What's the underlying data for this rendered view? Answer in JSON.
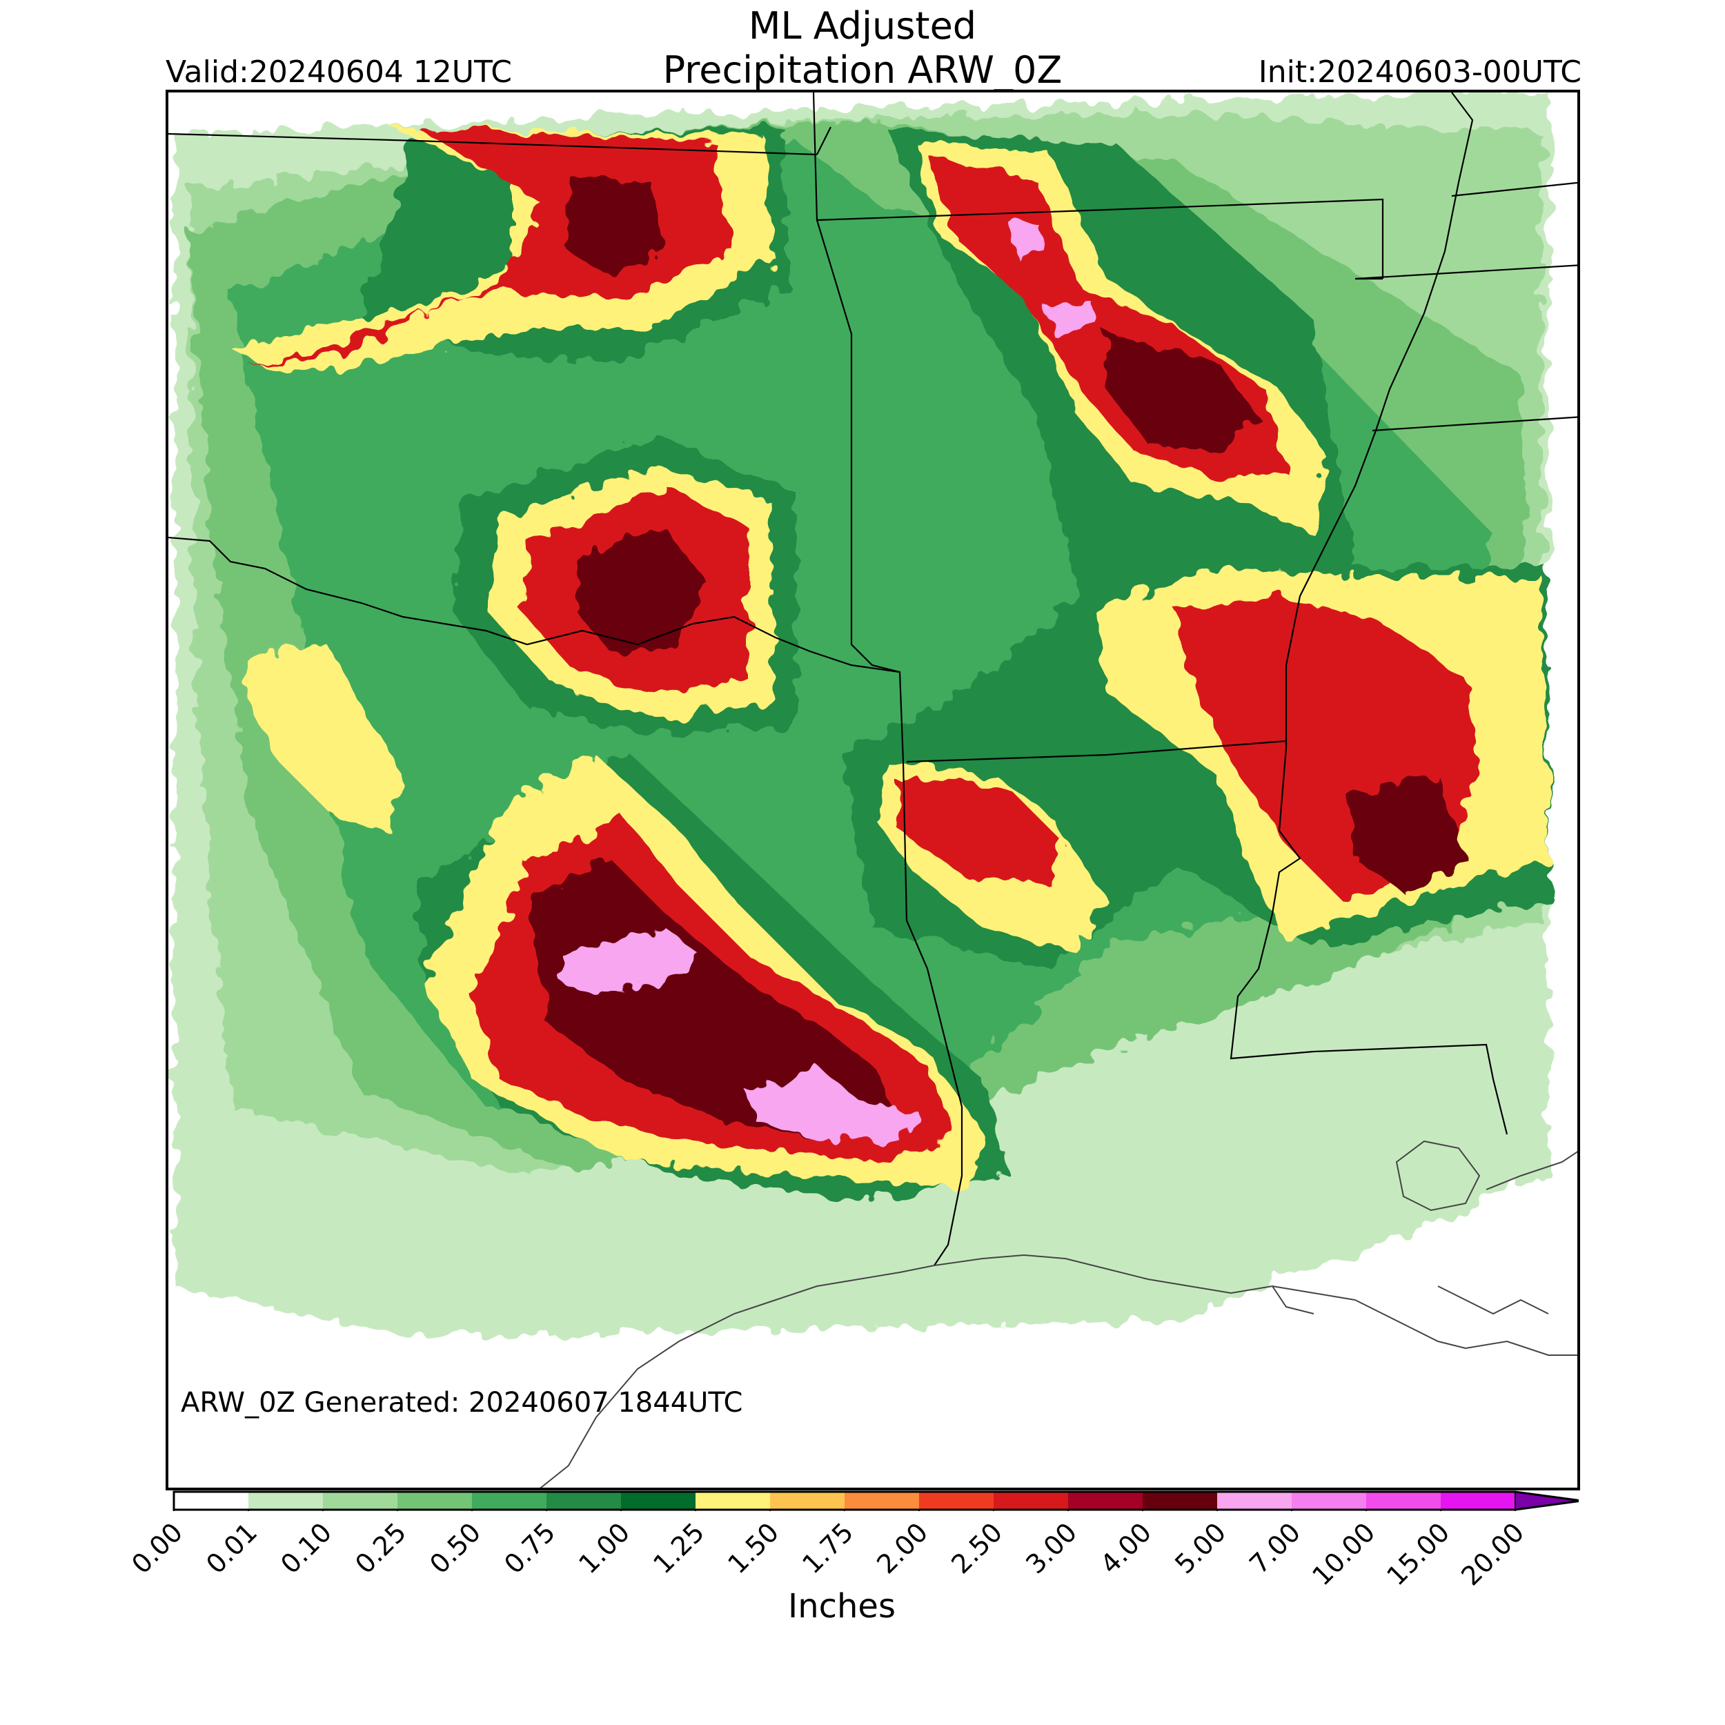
{
  "header": {
    "title_line1": "ML Adjusted",
    "title_line2": "Precipitation ARW_0Z",
    "valid": "Valid:20240604 12UTC",
    "init": "Init:20240603-00UTC"
  },
  "footer_note": "ARW_0Z Generated: 20240607 1844UTC",
  "colorbar": {
    "label": "Inches",
    "ticks": [
      "0.00",
      "0.01",
      "0.10",
      "0.25",
      "0.50",
      "0.75",
      "1.00",
      "1.25",
      "1.50",
      "1.75",
      "2.00",
      "2.50",
      "3.00",
      "4.00",
      "5.00",
      "7.00",
      "10.00",
      "15.00",
      "20.00"
    ],
    "colors": [
      "#ffffff",
      "#c7e9c0",
      "#a1d99b",
      "#74c476",
      "#41ab5d",
      "#238b45",
      "#006d2c",
      "#fff27a",
      "#fec44f",
      "#fd8d3c",
      "#f03b20",
      "#d7191c",
      "#a50026",
      "#67000d",
      "#f7a6ef",
      "#f57fee",
      "#f24ced",
      "#e514f0",
      "#a40ccf",
      "#7a00a8"
    ],
    "extend": "max"
  },
  "map": {
    "colors": {
      "light_green": "#c7e9c0",
      "pale_green": "#a1d99b",
      "mid_green": "#74c476",
      "green": "#41ab5d",
      "dark_green": "#238b45",
      "darkest_green": "#006d2c",
      "yellow": "#fff27a",
      "gold": "#fec44f",
      "orange": "#fd8d3c",
      "red_orange": "#f03b20",
      "red": "#d7191c",
      "crimson": "#a50026",
      "maroon": "#67000d",
      "pink": "#f7a6ef",
      "boundary": "#000000",
      "coast": "#444444"
    }
  }
}
